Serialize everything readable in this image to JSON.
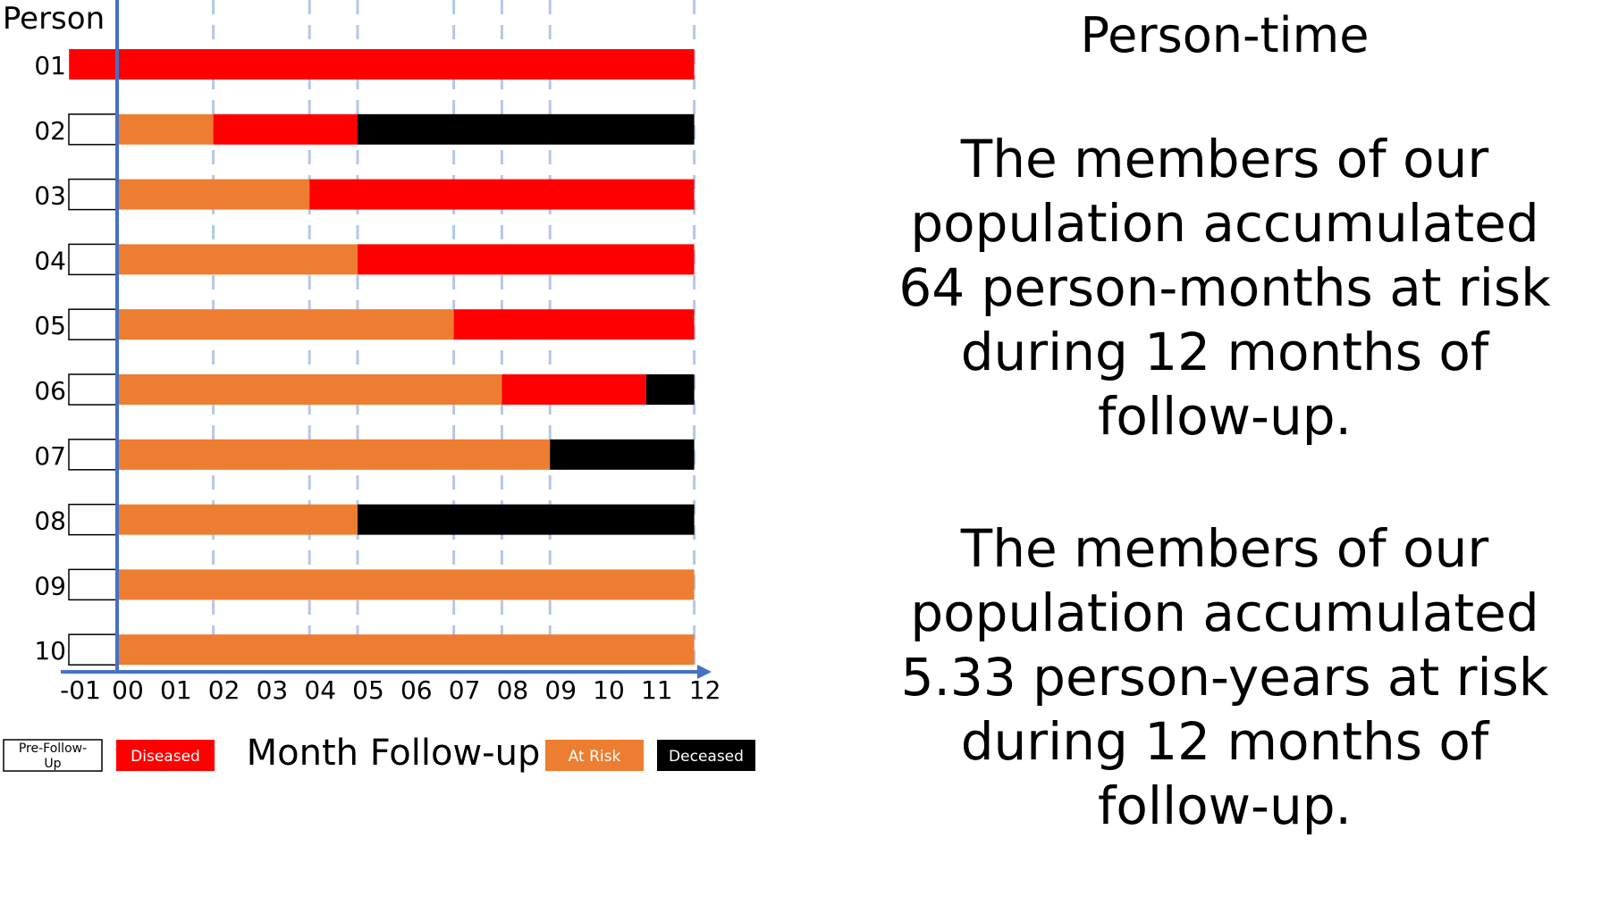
{
  "side_panel": {
    "title": "Person-time",
    "paragraphs": [
      [
        "The members of our",
        "population accumulated",
        "64 person-months at risk",
        "during 12 months of",
        "follow-up."
      ],
      [
        "The members of our",
        "population accumulated",
        "5.33 person-years at risk",
        "during 12 months of",
        "follow-up."
      ]
    ]
  },
  "chart_data": {
    "type": "bar",
    "orientation": "horizontal",
    "stacked": true,
    "title": "",
    "ylabel": "Person",
    "xlabel": "Month Follow-up",
    "categories": [
      "01",
      "02",
      "03",
      "04",
      "05",
      "06",
      "07",
      "08",
      "09",
      "10"
    ],
    "x_ticks": [
      "-01",
      "00",
      "01",
      "02",
      "03",
      "04",
      "05",
      "06",
      "07",
      "08",
      "09",
      "10",
      "11",
      "12"
    ],
    "xlim": [
      -1,
      12
    ],
    "grid": "vertical dashed lines at months 2, 4, 5, 7, 8, 9, 12",
    "gridlines_x": [
      2,
      4,
      5,
      7,
      8,
      9,
      12
    ],
    "states": {
      "pre": {
        "label": "Pre-Follow-Up",
        "color": "#ffffff"
      },
      "diseased": {
        "label": "Diseased",
        "color": "#ff0000"
      },
      "at_risk": {
        "label": "At Risk",
        "color": "#ed7d31"
      },
      "deceased": {
        "label": "Deceased",
        "color": "#000000"
      }
    },
    "persons": [
      {
        "id": "01",
        "segments": [
          {
            "state": "diseased",
            "start": -1,
            "end": 12
          }
        ]
      },
      {
        "id": "02",
        "segments": [
          {
            "state": "pre",
            "start": -1,
            "end": 0
          },
          {
            "state": "at_risk",
            "start": 0,
            "end": 2
          },
          {
            "state": "diseased",
            "start": 2,
            "end": 5
          },
          {
            "state": "deceased",
            "start": 5,
            "end": 12
          }
        ]
      },
      {
        "id": "03",
        "segments": [
          {
            "state": "pre",
            "start": -1,
            "end": 0
          },
          {
            "state": "at_risk",
            "start": 0,
            "end": 4
          },
          {
            "state": "diseased",
            "start": 4,
            "end": 12
          }
        ]
      },
      {
        "id": "04",
        "segments": [
          {
            "state": "pre",
            "start": -1,
            "end": 0
          },
          {
            "state": "at_risk",
            "start": 0,
            "end": 5
          },
          {
            "state": "diseased",
            "start": 5,
            "end": 12
          }
        ]
      },
      {
        "id": "05",
        "segments": [
          {
            "state": "pre",
            "start": -1,
            "end": 0
          },
          {
            "state": "at_risk",
            "start": 0,
            "end": 7
          },
          {
            "state": "diseased",
            "start": 7,
            "end": 12
          }
        ]
      },
      {
        "id": "06",
        "segments": [
          {
            "state": "pre",
            "start": -1,
            "end": 0
          },
          {
            "state": "at_risk",
            "start": 0,
            "end": 8
          },
          {
            "state": "diseased",
            "start": 8,
            "end": 11
          },
          {
            "state": "deceased",
            "start": 11,
            "end": 12
          }
        ]
      },
      {
        "id": "07",
        "segments": [
          {
            "state": "pre",
            "start": -1,
            "end": 0
          },
          {
            "state": "at_risk",
            "start": 0,
            "end": 9
          },
          {
            "state": "deceased",
            "start": 9,
            "end": 12
          }
        ]
      },
      {
        "id": "08",
        "segments": [
          {
            "state": "pre",
            "start": -1,
            "end": 0
          },
          {
            "state": "at_risk",
            "start": 0,
            "end": 5
          },
          {
            "state": "deceased",
            "start": 5,
            "end": 12
          }
        ]
      },
      {
        "id": "09",
        "segments": [
          {
            "state": "pre",
            "start": -1,
            "end": 0
          },
          {
            "state": "at_risk",
            "start": 0,
            "end": 12
          }
        ]
      },
      {
        "id": "10",
        "segments": [
          {
            "state": "pre",
            "start": -1,
            "end": 0
          },
          {
            "state": "at_risk",
            "start": 0,
            "end": 12
          }
        ]
      }
    ],
    "legend": {
      "placement": "bottom",
      "items": [
        {
          "label": "Pre-Follow-Up",
          "state": "pre"
        },
        {
          "label": "Diseased",
          "state": "diseased"
        },
        {
          "label": "At Risk",
          "state": "at_risk"
        },
        {
          "label": "Deceased",
          "state": "deceased"
        }
      ]
    },
    "axis_color": "#4472c4",
    "grid_color": "#b4c7e7"
  }
}
